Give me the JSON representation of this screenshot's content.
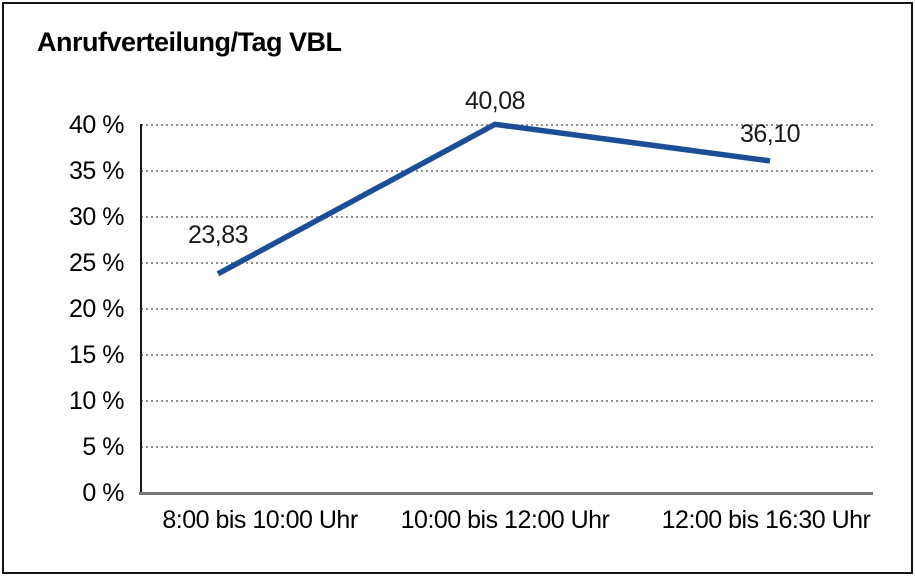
{
  "title": "Anrufverteilung/Tag VBL",
  "chart_data": {
    "type": "line",
    "title": "Anrufverteilung/Tag VBL",
    "categories": [
      "8:00 bis 10:00 Uhr",
      "10:00 bis 12:00 Uhr",
      "12:00 bis 16:30 Uhr"
    ],
    "values": [
      23.83,
      40.08,
      36.1
    ],
    "point_labels": [
      "23,83",
      "40,08",
      "36,10"
    ],
    "xlabel": "",
    "ylabel": "",
    "ylim": [
      0,
      40
    ],
    "ytick_step": 5,
    "ytick_suffix": " %",
    "grid": "horizontal-dotted",
    "legend": "none",
    "line_color": "#1b4e97",
    "text_color": "#000000",
    "background_color": "#ffffff"
  }
}
